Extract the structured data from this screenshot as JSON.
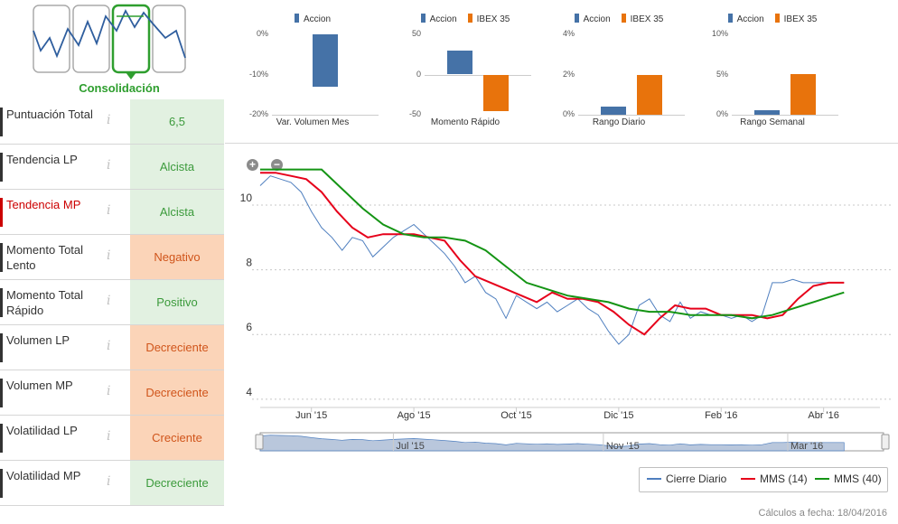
{
  "phase": {
    "label": "Consolidación",
    "active_index": 2
  },
  "indicators": [
    {
      "label": "Puntuación Total",
      "value": "6,5",
      "status": "pos",
      "highlight": false
    },
    {
      "label": "Tendencia LP",
      "value": "Alcista",
      "status": "pos",
      "highlight": false
    },
    {
      "label": "Tendencia MP",
      "value": "Alcista",
      "status": "pos",
      "highlight": true
    },
    {
      "label": "Momento Total Lento",
      "value": "Negativo",
      "status": "neg",
      "highlight": false
    },
    {
      "label": "Momento Total Rápido",
      "value": "Positivo",
      "status": "pos",
      "highlight": false
    },
    {
      "label": "Volumen LP",
      "value": "Decreciente",
      "status": "neg",
      "highlight": false
    },
    {
      "label": "Volumen MP",
      "value": "Decreciente",
      "status": "neg",
      "highlight": false
    },
    {
      "label": "Volatilidad LP",
      "value": "Creciente",
      "status": "neg",
      "highlight": false
    },
    {
      "label": "Volatilidad MP",
      "value": "Decreciente",
      "status": "pos",
      "highlight": false
    }
  ],
  "info_glyph": "i",
  "colors": {
    "accion": "#4572a7",
    "ibex": "#e8730c",
    "cierre": "#4f7fbf",
    "mms14": "#e6001a",
    "mms40": "#149414"
  },
  "chart_data": [
    {
      "type": "bar",
      "title": "Var. Volumen Mes",
      "series": [
        {
          "name": "Accion",
          "values": [
            -13
          ]
        }
      ],
      "yticks": [
        "0%",
        "-10%",
        "-20%"
      ],
      "ylim": [
        -20,
        0
      ]
    },
    {
      "type": "bar",
      "title": "Momento Rápido",
      "series": [
        {
          "name": "Accion",
          "values": [
            30
          ]
        },
        {
          "name": "IBEX 35",
          "values": [
            -45
          ]
        }
      ],
      "yticks": [
        "50",
        "0",
        "-50"
      ],
      "ylim": [
        -50,
        50
      ]
    },
    {
      "type": "bar",
      "title": "Rango Diario",
      "series": [
        {
          "name": "Accion",
          "values": [
            0.4
          ]
        },
        {
          "name": "IBEX 35",
          "values": [
            2.0
          ]
        }
      ],
      "yticks": [
        "4%",
        "2%",
        "0%"
      ],
      "ylim": [
        0,
        4
      ]
    },
    {
      "type": "bar",
      "title": "Rango Semanal",
      "series": [
        {
          "name": "Accion",
          "values": [
            0.6
          ]
        },
        {
          "name": "IBEX 35",
          "values": [
            5.1
          ]
        }
      ],
      "yticks": [
        "10%",
        "5%",
        "0%"
      ],
      "ylim": [
        0,
        10
      ]
    },
    {
      "type": "line",
      "title": "",
      "yticks": [
        "10",
        "8",
        "6",
        "4"
      ],
      "ylim": [
        3.8,
        11.2
      ],
      "x_range": [
        0,
        12.1
      ],
      "xticks": [
        {
          "label": "Jun '15",
          "x": 1
        },
        {
          "label": "Ago '15",
          "x": 3
        },
        {
          "label": "Oct '15",
          "x": 5
        },
        {
          "label": "Dic '15",
          "x": 7
        },
        {
          "label": "Feb '16",
          "x": 9
        },
        {
          "label": "Abr '16",
          "x": 11
        }
      ],
      "navigator_labels": [
        {
          "label": "Jul '15",
          "x": 2.6
        },
        {
          "label": "Nov '15",
          "x": 6.7
        },
        {
          "label": "Mar '16",
          "x": 10.3
        }
      ],
      "series": [
        {
          "name": "Cierre Diario",
          "x": [
            0,
            0.2,
            0.4,
            0.6,
            0.8,
            1.0,
            1.2,
            1.4,
            1.6,
            1.8,
            2.0,
            2.2,
            2.4,
            2.6,
            2.8,
            3.0,
            3.2,
            3.4,
            3.6,
            3.8,
            4.0,
            4.2,
            4.4,
            4.6,
            4.8,
            5.0,
            5.2,
            5.4,
            5.6,
            5.8,
            6.0,
            6.2,
            6.4,
            6.6,
            6.8,
            7.0,
            7.2,
            7.4,
            7.6,
            7.8,
            8.0,
            8.2,
            8.4,
            8.6,
            8.8,
            9.0,
            9.2,
            9.4,
            9.6,
            9.8,
            10.0,
            10.2,
            10.4,
            10.6,
            10.8,
            11.0,
            11.2,
            11.4
          ],
          "values": [
            10.6,
            10.9,
            10.8,
            10.7,
            10.4,
            9.8,
            9.3,
            9.0,
            8.6,
            9.0,
            8.9,
            8.4,
            8.7,
            9.0,
            9.2,
            9.4,
            9.1,
            8.8,
            8.5,
            8.1,
            7.6,
            7.8,
            7.3,
            7.1,
            6.5,
            7.2,
            7.0,
            6.8,
            7.0,
            6.7,
            6.9,
            7.1,
            6.8,
            6.6,
            6.1,
            5.7,
            6.0,
            6.9,
            7.1,
            6.6,
            6.4,
            7.0,
            6.5,
            6.7,
            6.6,
            6.6,
            6.5,
            6.6,
            6.4,
            6.6,
            7.6,
            7.6,
            7.7,
            7.6,
            7.6,
            7.6,
            7.6,
            7.6
          ]
        },
        {
          "name": "MMS (14)",
          "x": [
            0,
            0.3,
            0.6,
            0.9,
            1.2,
            1.5,
            1.8,
            2.1,
            2.4,
            2.7,
            3.0,
            3.3,
            3.6,
            3.9,
            4.2,
            4.5,
            4.8,
            5.1,
            5.4,
            5.7,
            6.0,
            6.3,
            6.6,
            6.9,
            7.2,
            7.5,
            7.8,
            8.1,
            8.4,
            8.7,
            9.0,
            9.3,
            9.6,
            9.9,
            10.2,
            10.5,
            10.8,
            11.1,
            11.4
          ],
          "values": [
            11.0,
            11.0,
            10.9,
            10.8,
            10.4,
            9.8,
            9.3,
            9.0,
            9.1,
            9.1,
            9.1,
            9.0,
            8.9,
            8.3,
            7.8,
            7.6,
            7.4,
            7.2,
            7.0,
            7.3,
            7.1,
            7.1,
            7.0,
            6.7,
            6.3,
            6.0,
            6.5,
            6.9,
            6.8,
            6.8,
            6.6,
            6.6,
            6.6,
            6.5,
            6.6,
            7.1,
            7.5,
            7.6,
            7.6
          ]
        },
        {
          "name": "MMS (40)",
          "x": [
            0,
            0.4,
            0.8,
            1.2,
            1.6,
            2.0,
            2.4,
            2.8,
            3.2,
            3.6,
            4.0,
            4.4,
            4.8,
            5.2,
            5.6,
            6.0,
            6.4,
            6.8,
            7.2,
            7.6,
            8.0,
            8.4,
            8.8,
            9.2,
            9.6,
            10.0,
            10.4,
            10.8,
            11.2,
            11.4
          ],
          "values": [
            11.1,
            11.1,
            11.1,
            11.1,
            10.5,
            9.9,
            9.4,
            9.1,
            9.0,
            9.0,
            8.9,
            8.6,
            8.1,
            7.6,
            7.4,
            7.2,
            7.1,
            7.0,
            6.8,
            6.7,
            6.7,
            6.6,
            6.6,
            6.6,
            6.5,
            6.6,
            6.8,
            7.0,
            7.2,
            7.3
          ]
        }
      ]
    }
  ],
  "legend": {
    "cierre": "Cierre Diario",
    "mms14": "MMS (14)",
    "mms40": "MMS (40)",
    "accion": "Accion",
    "ibex": "IBEX 35"
  },
  "zoom": {
    "in": "+",
    "out": "−"
  },
  "footer": "Cálculos a fecha: 18/04/2016"
}
